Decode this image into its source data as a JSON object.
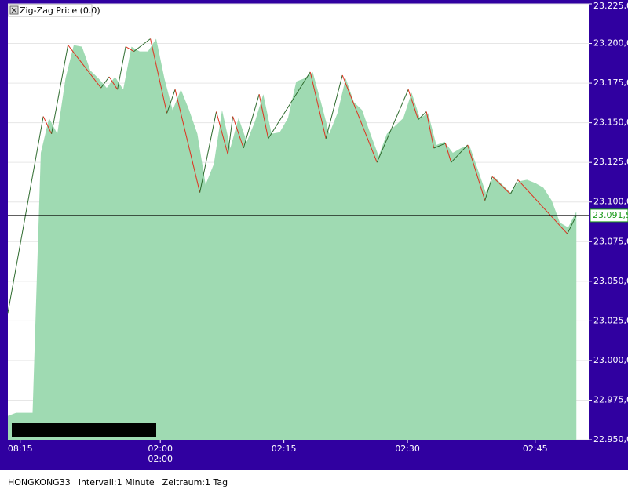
{
  "chart_data": {
    "type": "area",
    "legend": "Zig-Zag Price (0.0)",
    "xlim": [
      0,
      70.5
    ],
    "ylim": [
      22.95,
      23.225
    ],
    "grid": true,
    "xticks": [
      {
        "value": 1.5,
        "label": "08:15"
      },
      {
        "value": 18.5,
        "label": "02:00",
        "sublabel": "02:00"
      },
      {
        "value": 33.5,
        "label": "02:15"
      },
      {
        "value": 48.5,
        "label": "02:30"
      },
      {
        "value": 64,
        "label": "02:45"
      }
    ],
    "yticks": [
      {
        "value": 22.95,
        "label": "22.950,0"
      },
      {
        "value": 22.975,
        "label": "22.975,0"
      },
      {
        "value": 23.0,
        "label": "23.000,0"
      },
      {
        "value": 23.025,
        "label": "23.025,0"
      },
      {
        "value": 23.05,
        "label": "23.050,0"
      },
      {
        "value": 23.075,
        "label": "23.075,0"
      },
      {
        "value": 23.1,
        "label": "23.100,0"
      },
      {
        "value": 23.125,
        "label": "23.125,0"
      },
      {
        "value": 23.15,
        "label": "23.150,0"
      },
      {
        "value": 23.175,
        "label": "23.175,0"
      },
      {
        "value": 23.2,
        "label": "23.200,0"
      },
      {
        "value": 23.225,
        "label": "23.225,0"
      }
    ],
    "area": {
      "color": "#9fdab2",
      "x": [
        0,
        1,
        2,
        3,
        4,
        5,
        6,
        7,
        8,
        9,
        10,
        11,
        12,
        13,
        14,
        15,
        16,
        17,
        18,
        19,
        20,
        21,
        22,
        23,
        24,
        25,
        26,
        27,
        28,
        29,
        30,
        31,
        32,
        33,
        34,
        35,
        36,
        37,
        38,
        39,
        40,
        41,
        42,
        43,
        44,
        45,
        46,
        47,
        48,
        49,
        50,
        51,
        52,
        53,
        54,
        55,
        56,
        57,
        58,
        59,
        60,
        61,
        62,
        63,
        64,
        65,
        66,
        67,
        68,
        69
      ],
      "values": [
        22.965,
        22.967,
        22.967,
        22.967,
        23.131,
        23.153,
        23.143,
        23.178,
        23.199,
        23.198,
        23.183,
        23.178,
        23.172,
        23.179,
        23.171,
        23.198,
        23.195,
        23.195,
        23.203,
        23.178,
        23.158,
        23.171,
        23.158,
        23.143,
        23.111,
        23.124,
        23.158,
        23.134,
        23.153,
        23.138,
        23.151,
        23.168,
        23.143,
        23.144,
        23.153,
        23.176,
        23.178,
        23.182,
        23.163,
        23.143,
        23.156,
        23.178,
        23.163,
        23.158,
        23.143,
        23.129,
        23.143,
        23.148,
        23.153,
        23.169,
        23.153,
        23.156,
        23.136,
        23.138,
        23.131,
        23.134,
        23.136,
        23.121,
        23.106,
        23.116,
        23.111,
        23.106,
        23.113,
        23.114,
        23.112,
        23.109,
        23.101,
        23.087,
        23.084,
        23.094
      ]
    },
    "zigzag": {
      "up_color": "#2e6b2e",
      "down_color": "#e0301e",
      "x": [
        0,
        4.3,
        5.3,
        7.3,
        11.3,
        12.3,
        13.3,
        14.3,
        15.3,
        17.3,
        19.3,
        20.3,
        23.3,
        25.3,
        26.7,
        27.3,
        28.6,
        30.5,
        31.6,
        36.7,
        38.6,
        40.6,
        44.8,
        48.6,
        49.8,
        50.8,
        51.7,
        53.1,
        53.8,
        55.8,
        57.9,
        58.8,
        61,
        61.9,
        67.9,
        69
      ],
      "values": [
        23.03,
        23.154,
        23.143,
        23.199,
        23.172,
        23.179,
        23.171,
        23.198,
        23.195,
        23.203,
        23.156,
        23.171,
        23.106,
        23.157,
        23.13,
        23.154,
        23.134,
        23.168,
        23.14,
        23.182,
        23.14,
        23.18,
        23.125,
        23.171,
        23.152,
        23.157,
        23.134,
        23.137,
        23.125,
        23.136,
        23.101,
        23.116,
        23.105,
        23.114,
        23.08,
        23.0915
      ]
    },
    "last_price": {
      "value": 23.0915,
      "label": "23.091,5",
      "color": "#1a9a1a"
    },
    "footer": [
      "HONGKONG33",
      "Intervall:1 Minute",
      "Zeitraum:1 Tag"
    ]
  }
}
